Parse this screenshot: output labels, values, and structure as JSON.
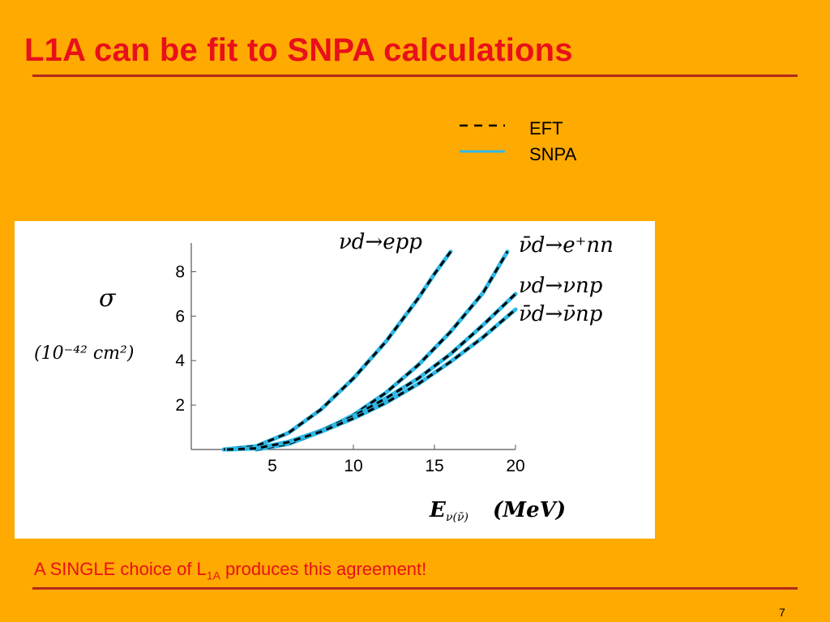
{
  "slide": {
    "title": "L1A can be fit to SNPA calculations",
    "caption_prefix": "A SINGLE choice of L",
    "caption_subscript": "1A",
    "caption_suffix": " produces this agreement!",
    "page_number": "7"
  },
  "colors": {
    "background": "#FFAA00",
    "title": "#E8101A",
    "rule": "#B5281C",
    "eft_line": "#000000",
    "snpa_line": "#2EB8E6"
  },
  "legend": {
    "items": [
      {
        "label": "EFT",
        "style": "dashed",
        "color": "#000000"
      },
      {
        "label": "SNPA",
        "style": "solid",
        "color": "#2EB8E6"
      }
    ]
  },
  "chart_data": {
    "type": "line",
    "title": "",
    "ylabel_symbol": "σ",
    "ylabel_units": "(10⁻⁴² cm²)",
    "xlabel_main": "E",
    "xlabel_sub": "ν(ν̄)",
    "xlabel_units": "(MeV)",
    "xlim": [
      0,
      20
    ],
    "ylim": [
      0,
      9
    ],
    "xticks": [
      5,
      10,
      15,
      20
    ],
    "yticks": [
      2,
      4,
      6,
      8
    ],
    "grid": false,
    "series": [
      {
        "name": "νd→epp",
        "x": [
          2.0,
          4.0,
          6.0,
          8.0,
          10.0,
          12.0,
          14.0,
          15.0,
          16.0
        ],
        "y": [
          0.0,
          0.15,
          0.75,
          1.8,
          3.2,
          4.85,
          6.8,
          7.9,
          8.9
        ]
      },
      {
        "name": "ν̄d→e⁺nn",
        "x": [
          4.0,
          6.0,
          8.0,
          10.0,
          12.0,
          14.0,
          16.0,
          18.0,
          19.5
        ],
        "y": [
          0.0,
          0.25,
          0.8,
          1.55,
          2.55,
          3.8,
          5.3,
          7.05,
          8.9
        ]
      },
      {
        "name": "νd→νnp",
        "x": [
          2.2,
          4.0,
          6.0,
          8.0,
          10.0,
          12.0,
          14.0,
          16.0,
          18.0,
          20.0
        ],
        "y": [
          0.0,
          0.05,
          0.35,
          0.85,
          1.5,
          2.3,
          3.2,
          4.3,
          5.6,
          7.0
        ]
      },
      {
        "name": "ν̄d→ν̄np",
        "x": [
          2.2,
          4.0,
          6.0,
          8.0,
          10.0,
          12.0,
          14.0,
          16.0,
          18.0,
          20.0
        ],
        "y": [
          0.0,
          0.05,
          0.33,
          0.8,
          1.4,
          2.1,
          2.95,
          3.95,
          5.05,
          6.3
        ]
      }
    ]
  }
}
